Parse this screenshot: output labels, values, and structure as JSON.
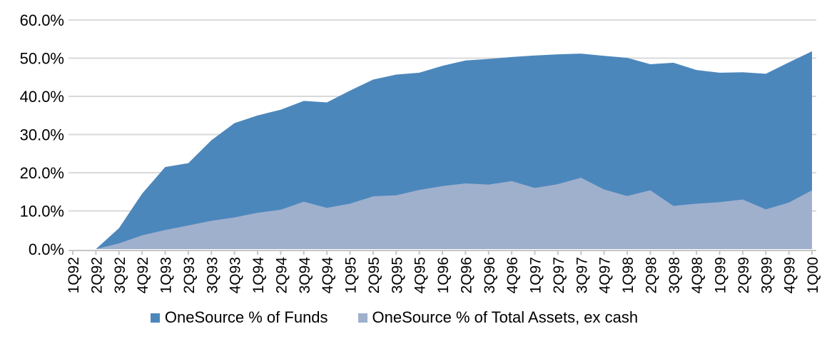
{
  "chart_data": {
    "type": "area",
    "stacked": false,
    "title": "",
    "xlabel": "",
    "ylabel": "",
    "categories": [
      "1Q92",
      "2Q92",
      "3Q92",
      "4Q92",
      "1Q93",
      "2Q93",
      "3Q93",
      "4Q93",
      "1Q94",
      "2Q94",
      "3Q94",
      "4Q94",
      "1Q95",
      "2Q95",
      "3Q95",
      "4Q95",
      "1Q96",
      "2Q96",
      "3Q96",
      "4Q96",
      "1Q97",
      "2Q97",
      "3Q97",
      "4Q97",
      "1Q98",
      "2Q98",
      "3Q98",
      "4Q98",
      "1Q99",
      "2Q99",
      "3Q99",
      "4Q99",
      "1Q00"
    ],
    "series": [
      {
        "name": "OneSource % of Funds",
        "color": "#4C87BC",
        "values": [
          0.0,
          0.0,
          5.5,
          14.5,
          21.5,
          22.5,
          28.5,
          33.0,
          35.0,
          36.5,
          38.8,
          38.4,
          41.5,
          44.4,
          45.7,
          46.2,
          48.0,
          49.4,
          49.8,
          50.3,
          50.7,
          51.0,
          51.2,
          50.6,
          50.1,
          48.4,
          48.8,
          46.9,
          46.2,
          46.3,
          45.9,
          48.9,
          51.8
        ]
      },
      {
        "name": "OneSource % of Total Assets, ex cash",
        "color": "#9FB0CD",
        "values": [
          0.0,
          0.0,
          1.5,
          3.6,
          5.0,
          6.2,
          7.4,
          8.3,
          9.5,
          10.3,
          12.4,
          10.8,
          11.9,
          13.8,
          14.1,
          15.5,
          16.5,
          17.2,
          16.9,
          17.8,
          16.0,
          17.0,
          18.7,
          15.6,
          13.9,
          15.4,
          11.3,
          11.9,
          12.3,
          13.0,
          10.4,
          12.2,
          15.4
        ]
      }
    ],
    "y_axis": {
      "min": 0,
      "max": 60,
      "step": 10,
      "tick_labels": [
        "0.0%",
        "10.0%",
        "20.0%",
        "30.0%",
        "40.0%",
        "50.0%",
        "60.0%"
      ]
    },
    "grid": "horizontal",
    "legend_position": "bottom"
  },
  "colors": {
    "grid": "#D9D9D9",
    "axis": "#C6C6C6",
    "text": "#000000",
    "background": "#FFFFFF"
  }
}
